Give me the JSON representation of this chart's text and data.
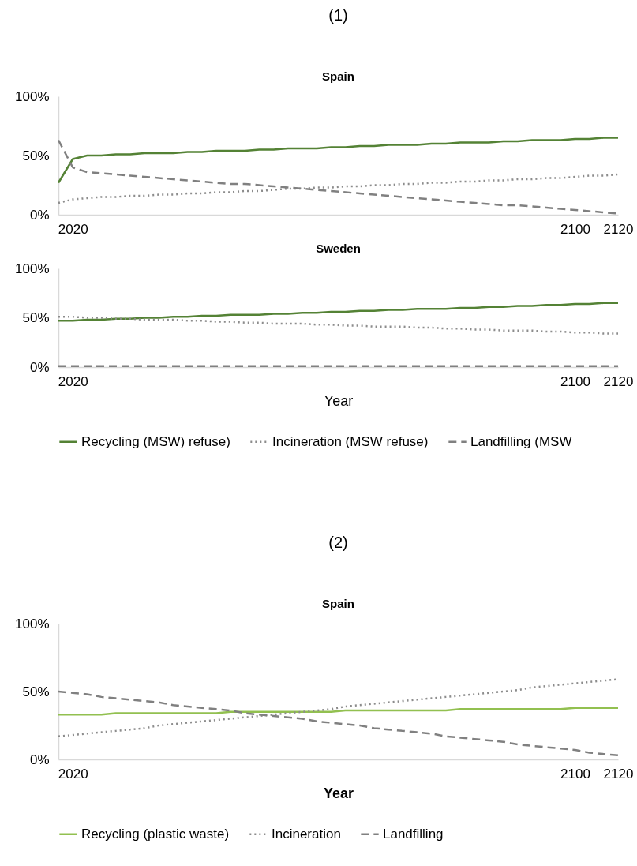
{
  "chart_data": [
    {
      "type": "line",
      "title": "(1)",
      "subtitle": "Spain",
      "categories": [
        null,
        "2020",
        null,
        null,
        null,
        null,
        null,
        null,
        null,
        null,
        null,
        null,
        null,
        null,
        null,
        null,
        null,
        null,
        null,
        null,
        null,
        null,
        null,
        null,
        null,
        null,
        null,
        null,
        null,
        null,
        null,
        null,
        null,
        null,
        null,
        null,
        "2100",
        null,
        null,
        "2120"
      ],
      "ylim": [
        0,
        100
      ],
      "yticks": [
        {
          "value": 0,
          "label": "0%"
        },
        {
          "value": 50,
          "label": "50%"
        },
        {
          "value": 100,
          "label": "100%"
        }
      ],
      "legend": false,
      "series": [
        {
          "color": "#548235",
          "line_style": "solid",
          "values": [
            27,
            47,
            50,
            50,
            51,
            51,
            52,
            52,
            52,
            53,
            53,
            54,
            54,
            54,
            55,
            55,
            56,
            56,
            56,
            57,
            57,
            58,
            58,
            59,
            59,
            59,
            60,
            60,
            61,
            61,
            61,
            62,
            62,
            63,
            63,
            63,
            64,
            64,
            65,
            65
          ]
        },
        {
          "color": "#8c8c8c",
          "line_style": "dotted",
          "values": [
            10,
            13,
            14,
            15,
            15,
            16,
            16,
            17,
            17,
            18,
            18,
            19,
            19,
            20,
            20,
            21,
            22,
            22,
            23,
            23,
            24,
            24,
            25,
            25,
            26,
            26,
            27,
            27,
            28,
            28,
            29,
            29,
            30,
            30,
            31,
            31,
            32,
            33,
            33,
            34
          ]
        },
        {
          "color": "#808080",
          "line_style": "dashed",
          "values": [
            63,
            40,
            36,
            35,
            34,
            33,
            32,
            31,
            30,
            29,
            28,
            27,
            26,
            26,
            25,
            24,
            23,
            22,
            21,
            20,
            19,
            18,
            17,
            16,
            15,
            14,
            13,
            12,
            11,
            10,
            9,
            8,
            8,
            7,
            6,
            5,
            4,
            3,
            2,
            1
          ]
        }
      ]
    },
    {
      "type": "line",
      "title": "Sweden",
      "xlabel": "Year",
      "categories": [
        null,
        "2020",
        null,
        null,
        null,
        null,
        null,
        null,
        null,
        null,
        null,
        null,
        null,
        null,
        null,
        null,
        null,
        null,
        null,
        null,
        null,
        null,
        null,
        null,
        null,
        null,
        null,
        null,
        null,
        null,
        null,
        null,
        null,
        null,
        null,
        null,
        "2100",
        null,
        null,
        "2120"
      ],
      "ylim": [
        0,
        100
      ],
      "yticks": [
        {
          "value": 0,
          "label": "0%"
        },
        {
          "value": 50,
          "label": "50%"
        },
        {
          "value": 100,
          "label": "100%"
        }
      ],
      "legend": "bottom",
      "series": [
        {
          "name": "Recycling (MSW) refuse)",
          "color": "#548235",
          "line_style": "solid",
          "values": [
            47,
            47,
            48,
            48,
            49,
            49,
            50,
            50,
            51,
            51,
            52,
            52,
            53,
            53,
            53,
            54,
            54,
            55,
            55,
            56,
            56,
            57,
            57,
            58,
            58,
            59,
            59,
            59,
            60,
            60,
            61,
            61,
            62,
            62,
            63,
            63,
            64,
            64,
            65,
            65
          ]
        },
        {
          "name": "Incineration (MSW refuse)",
          "color": "#8c8c8c",
          "line_style": "dotted",
          "values": [
            51,
            51,
            50,
            50,
            49,
            49,
            48,
            48,
            48,
            47,
            47,
            46,
            46,
            45,
            45,
            44,
            44,
            44,
            43,
            43,
            42,
            42,
            41,
            41,
            41,
            40,
            40,
            39,
            39,
            38,
            38,
            37,
            37,
            37,
            36,
            36,
            35,
            35,
            34,
            34
          ]
        },
        {
          "name": "Landfilling (MSW",
          "color": "#808080",
          "line_style": "dashed",
          "values": [
            1,
            1,
            1,
            1,
            1,
            1,
            1,
            1,
            1,
            1,
            1,
            1,
            1,
            1,
            1,
            1,
            1,
            1,
            1,
            1,
            1,
            1,
            1,
            1,
            1,
            1,
            1,
            1,
            1,
            1,
            1,
            1,
            1,
            1,
            1,
            1,
            1,
            1,
            1,
            1
          ]
        }
      ]
    },
    {
      "type": "line",
      "title": "(2)",
      "subtitle": "Spain",
      "xlabel": "Year",
      "categories": [
        null,
        "2020",
        null,
        null,
        null,
        null,
        null,
        null,
        null,
        null,
        null,
        null,
        null,
        null,
        null,
        null,
        null,
        null,
        null,
        null,
        null,
        null,
        null,
        null,
        null,
        null,
        null,
        null,
        null,
        null,
        null,
        null,
        null,
        null,
        null,
        null,
        "2100",
        null,
        null,
        "2120"
      ],
      "ylim": [
        0,
        100
      ],
      "yticks": [
        {
          "value": 0,
          "label": "0%"
        },
        {
          "value": 50,
          "label": "50%"
        },
        {
          "value": 100,
          "label": "100%"
        }
      ],
      "legend": "bottom",
      "series": [
        {
          "name": "Recycling (plastic waste)",
          "color": "#92c050",
          "line_style": "solid",
          "values": [
            33,
            33,
            33,
            33,
            34,
            34,
            34,
            34,
            34,
            34,
            34,
            34,
            35,
            35,
            35,
            35,
            35,
            35,
            35,
            35,
            36,
            36,
            36,
            36,
            36,
            36,
            36,
            36,
            37,
            37,
            37,
            37,
            37,
            37,
            37,
            37,
            38,
            38,
            38,
            38
          ]
        },
        {
          "name": "Incineration",
          "color": "#8c8c8c",
          "line_style": "dotted",
          "values": [
            17,
            18,
            19,
            20,
            21,
            22,
            23,
            25,
            26,
            27,
            28,
            29,
            30,
            31,
            32,
            33,
            34,
            35,
            36,
            37,
            39,
            40,
            41,
            42,
            43,
            44,
            45,
            46,
            47,
            48,
            49,
            50,
            51,
            53,
            54,
            55,
            56,
            57,
            58,
            59
          ]
        },
        {
          "name": "Landfilling",
          "color": "#808080",
          "line_style": "dashed",
          "values": [
            50,
            49,
            48,
            46,
            45,
            44,
            43,
            42,
            40,
            39,
            38,
            37,
            36,
            34,
            33,
            32,
            31,
            30,
            28,
            27,
            26,
            25,
            23,
            22,
            21,
            20,
            19,
            17,
            16,
            15,
            14,
            13,
            11,
            10,
            9,
            8,
            7,
            5,
            4,
            3
          ]
        }
      ]
    }
  ]
}
